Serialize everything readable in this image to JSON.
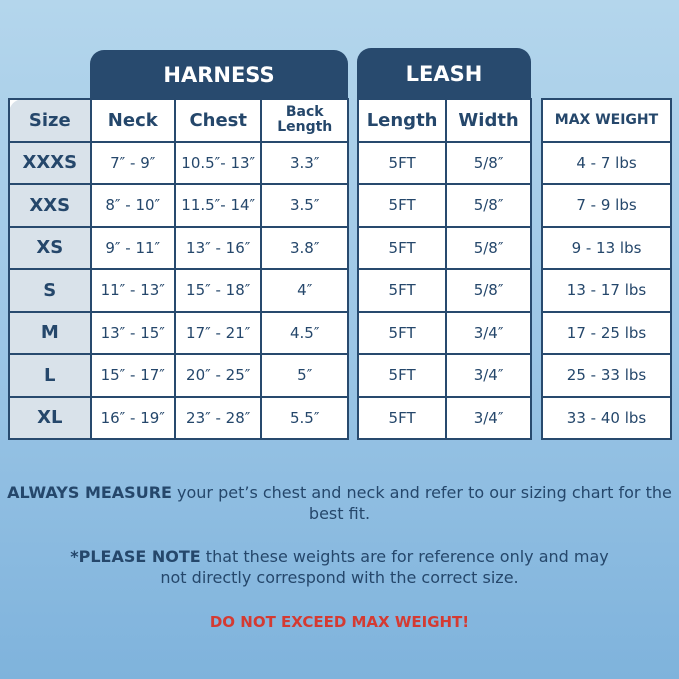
{
  "headers": {
    "harness": "HARNESS",
    "leash": "LEASH"
  },
  "columns": {
    "size": "Size",
    "neck": "Neck",
    "chest": "Chest",
    "back_length": "Back Length",
    "length": "Length",
    "width": "Width",
    "max_weight": "MAX WEIGHT"
  },
  "rows": [
    {
      "size": "XXXS",
      "neck": "7″ - 9″",
      "chest": "10.5″- 13″",
      "back": "3.3″",
      "length": "5FT",
      "width": "5/8″",
      "weight": "4 - 7 lbs"
    },
    {
      "size": "XXS",
      "neck": "8″ - 10″",
      "chest": "11.5″- 14″",
      "back": "3.5″",
      "length": "5FT",
      "width": "5/8″",
      "weight": "7 - 9 lbs"
    },
    {
      "size": "XS",
      "neck": "9″ - 11″",
      "chest": "13″ - 16″",
      "back": "3.8″",
      "length": "5FT",
      "width": "5/8″",
      "weight": "9 - 13 lbs"
    },
    {
      "size": "S",
      "neck": "11″ - 13″",
      "chest": "15″ - 18″",
      "back": "4″",
      "length": "5FT",
      "width": "5/8″",
      "weight": "13 - 17 lbs"
    },
    {
      "size": "M",
      "neck": "13″ - 15″",
      "chest": "17″ - 21″",
      "back": "4.5″",
      "length": "5FT",
      "width": "3/4″",
      "weight": "17 - 25 lbs"
    },
    {
      "size": "L",
      "neck": "15″ - 17″",
      "chest": "20″ - 25″",
      "back": "5″",
      "length": "5FT",
      "width": "3/4″",
      "weight": "25 - 33 lbs"
    },
    {
      "size": "XL",
      "neck": "16″ - 19″",
      "chest": "23″ - 28″",
      "back": "5.5″",
      "length": "5FT",
      "width": "3/4″",
      "weight": "33 - 40 lbs"
    }
  ],
  "notes": {
    "measure_bold": "ALWAYS MEASURE",
    "measure_text": " your pet’s chest and neck and refer to our sizing chart for the best fit.",
    "note_bold": "*PLEASE NOTE",
    "note_text": " that these weights are for reference only and may not directly correspond with the correct size.",
    "warning": "DO NOT EXCEED MAX WEIGHT!"
  },
  "colors": {
    "navy": "#284a6e",
    "warning": "#d43a32",
    "background": "#9cc6e6"
  }
}
